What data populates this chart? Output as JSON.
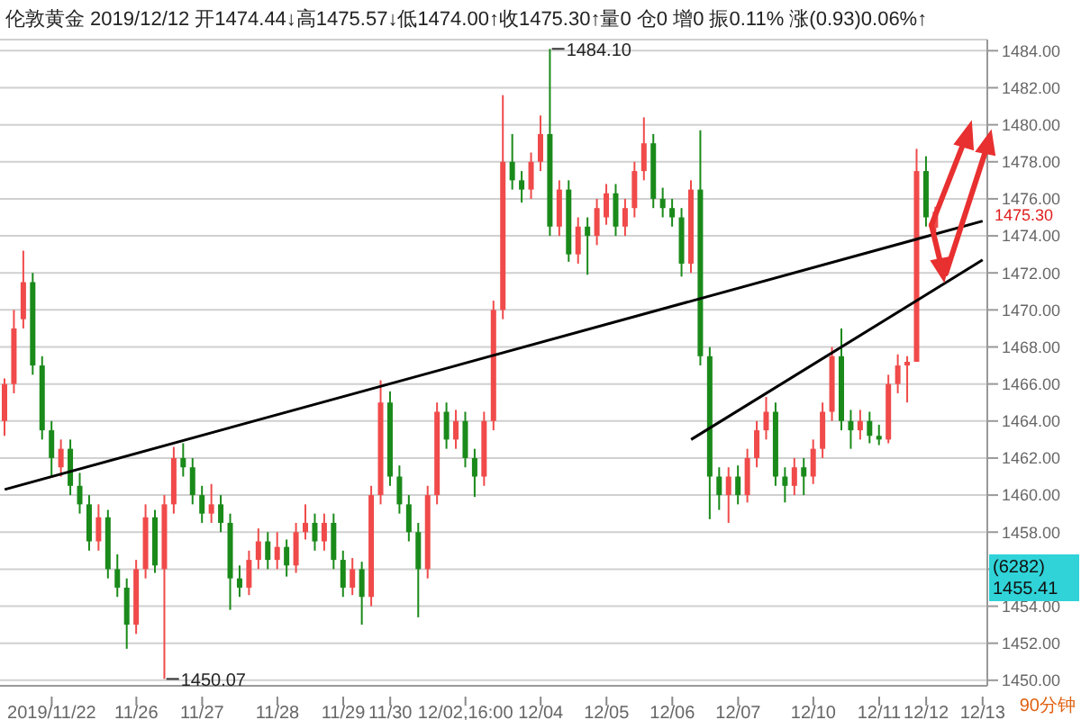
{
  "chart_data": {
    "type": "candlestick",
    "title": "伦敦黄金 2019/12/12 开1474.44↓高1475.57↓低1474.00↑收1475.30↑量0 仓0 增0 振0.11% 涨(0.93)0.06%↑",
    "categories": [
      null,
      null,
      null,
      null,
      null,
      "2019/11/22",
      null,
      null,
      null,
      null,
      null,
      null,
      null,
      null,
      "11/26",
      null,
      null,
      null,
      null,
      null,
      null,
      "11/27",
      null,
      null,
      null,
      null,
      null,
      null,
      null,
      "11/28",
      null,
      null,
      null,
      null,
      null,
      null,
      "11/29",
      null,
      null,
      null,
      null,
      "11/30",
      null,
      null,
      null,
      null,
      null,
      null,
      null,
      "12/02,16:00",
      null,
      null,
      null,
      null,
      null,
      null,
      null,
      "12/04",
      null,
      null,
      null,
      null,
      null,
      null,
      "12/05",
      null,
      null,
      null,
      null,
      null,
      null,
      "12/06",
      null,
      null,
      null,
      null,
      null,
      null,
      "12/07",
      null,
      null,
      null,
      null,
      null,
      null,
      null,
      "12/10",
      null,
      null,
      null,
      null,
      null,
      null,
      "12/11",
      null,
      null,
      null,
      null,
      "12/12",
      null,
      null,
      null,
      null,
      null,
      "12/13"
    ],
    "ohlc": [
      [
        1464,
        1466.3,
        1463.2,
        1466
      ],
      [
        1466,
        1470,
        1465.5,
        1469
      ],
      [
        1469.5,
        1473.2,
        1469,
        1471.5
      ],
      [
        1471.5,
        1472,
        1466.5,
        1467
      ],
      [
        1467,
        1467.5,
        1463,
        1463.5
      ],
      [
        1463.5,
        1464,
        1461,
        1462
      ],
      [
        1461.5,
        1463,
        1461,
        1462.5
      ],
      [
        1462.5,
        1463,
        1460,
        1460.5
      ],
      [
        1460.5,
        1461.2,
        1459,
        1459.5
      ],
      [
        1459.5,
        1460,
        1457,
        1457.5
      ],
      [
        1457.5,
        1459.5,
        1457,
        1458.8
      ],
      [
        1458.8,
        1459.2,
        1455.5,
        1456
      ],
      [
        1456,
        1456.8,
        1454.5,
        1455
      ],
      [
        1455,
        1455.5,
        1451.7,
        1453
      ],
      [
        1453,
        1456.5,
        1452.5,
        1456
      ],
      [
        1456,
        1459.5,
        1455.5,
        1458.8
      ],
      [
        1458.8,
        1459.2,
        1455.8,
        1456.2
      ],
      [
        1456,
        1460,
        1450.07,
        1459.5
      ],
      [
        1459.5,
        1462.6,
        1459,
        1462
      ],
      [
        1462,
        1462.8,
        1461,
        1461.5
      ],
      [
        1461.5,
        1462,
        1459.5,
        1460
      ],
      [
        1460,
        1460.5,
        1458.5,
        1459
      ],
      [
        1459,
        1460.6,
        1458.5,
        1459.5
      ],
      [
        1459.5,
        1460,
        1458,
        1458.5
      ],
      [
        1458.5,
        1459,
        1453.8,
        1455.5
      ],
      [
        1455.5,
        1456.2,
        1454.5,
        1455
      ],
      [
        1455,
        1457,
        1454.6,
        1456.5
      ],
      [
        1456.5,
        1458.2,
        1456,
        1457.5
      ],
      [
        1457.5,
        1458,
        1456,
        1456.5
      ],
      [
        1456.5,
        1458,
        1456,
        1457.2
      ],
      [
        1457.2,
        1457.6,
        1455.6,
        1456.2
      ],
      [
        1456.2,
        1458.5,
        1455.8,
        1458
      ],
      [
        1458,
        1459.5,
        1457.6,
        1458.5
      ],
      [
        1458.5,
        1459,
        1457,
        1457.5
      ],
      [
        1457.5,
        1459,
        1457,
        1458.5
      ],
      [
        1458.5,
        1459,
        1456,
        1456.5
      ],
      [
        1456.5,
        1457,
        1454.5,
        1455
      ],
      [
        1455,
        1456.6,
        1454.6,
        1456
      ],
      [
        1456,
        1456.4,
        1453,
        1454.5
      ],
      [
        1454.5,
        1460.5,
        1454,
        1460
      ],
      [
        1460,
        1466.2,
        1459.5,
        1465
      ],
      [
        1465,
        1465.6,
        1460.5,
        1461
      ],
      [
        1461,
        1461.6,
        1459,
        1459.5
      ],
      [
        1459.5,
        1460,
        1457.5,
        1458
      ],
      [
        1458,
        1458.5,
        1453.4,
        1456
      ],
      [
        1456,
        1460.5,
        1455.5,
        1460
      ],
      [
        1460,
        1465,
        1459.5,
        1464.5
      ],
      [
        1464.5,
        1465,
        1462.5,
        1463
      ],
      [
        1463,
        1464.6,
        1462.5,
        1464
      ],
      [
        1464,
        1464.5,
        1461.5,
        1462
      ],
      [
        1462,
        1462.5,
        1459.9,
        1461
      ],
      [
        1461,
        1464.5,
        1460.5,
        1464
      ],
      [
        1464,
        1470.5,
        1463.5,
        1470
      ],
      [
        1470,
        1481.6,
        1469.5,
        1478
      ],
      [
        1478,
        1479.5,
        1476.5,
        1477
      ],
      [
        1477,
        1477.5,
        1475.8,
        1476.5
      ],
      [
        1476.5,
        1478.5,
        1476,
        1478
      ],
      [
        1478,
        1480.5,
        1477.5,
        1479.5
      ],
      [
        1479.5,
        1484.1,
        1474,
        1474.5
      ],
      [
        1474.5,
        1477,
        1474,
        1476.5
      ],
      [
        1476.5,
        1477,
        1472.6,
        1473
      ],
      [
        1473,
        1475,
        1472.5,
        1474.5
      ],
      [
        1474.5,
        1475,
        1471.9,
        1474
      ],
      [
        1474,
        1476,
        1473.5,
        1475.5
      ],
      [
        1475,
        1476.8,
        1474.6,
        1476.3
      ],
      [
        1476.3,
        1476.8,
        1474,
        1474.5
      ],
      [
        1474.5,
        1476,
        1474,
        1475.5
      ],
      [
        1475.5,
        1478,
        1475,
        1477.5
      ],
      [
        1477.5,
        1480.4,
        1477,
        1479
      ],
      [
        1479,
        1479.5,
        1475.5,
        1476
      ],
      [
        1476,
        1476.6,
        1475,
        1475.5
      ],
      [
        1475.5,
        1476,
        1474.5,
        1475
      ],
      [
        1475,
        1475.5,
        1471.8,
        1472.5
      ],
      [
        1472.5,
        1477,
        1472,
        1476.5
      ],
      [
        1476.5,
        1479.7,
        1467,
        1467.5
      ],
      [
        1467.5,
        1468,
        1458.7,
        1461
      ],
      [
        1461,
        1461.5,
        1459.2,
        1460
      ],
      [
        1460,
        1461.5,
        1458.5,
        1461
      ],
      [
        1461,
        1461.6,
        1459.5,
        1460
      ],
      [
        1460,
        1462.5,
        1459.6,
        1462
      ],
      [
        1462,
        1464,
        1461.5,
        1463.5
      ],
      [
        1463.5,
        1465.3,
        1463,
        1464.5
      ],
      [
        1464.5,
        1465,
        1460.5,
        1461
      ],
      [
        1461,
        1461.5,
        1459.6,
        1460.5
      ],
      [
        1460.5,
        1462,
        1460,
        1461.5
      ],
      [
        1461.5,
        1462,
        1460,
        1461
      ],
      [
        1461,
        1463,
        1460.6,
        1462.5
      ],
      [
        1462.5,
        1465,
        1462,
        1464.5
      ],
      [
        1464.5,
        1468,
        1464,
        1467.5
      ],
      [
        1467.5,
        1469,
        1463.5,
        1464
      ],
      [
        1464,
        1464.6,
        1462.5,
        1463.5
      ],
      [
        1463.5,
        1464.6,
        1463,
        1464
      ],
      [
        1464,
        1464.5,
        1462.8,
        1463.2
      ],
      [
        1463.2,
        1463.8,
        1462.7,
        1463
      ],
      [
        1463,
        1466.5,
        1462.8,
        1466
      ],
      [
        1466,
        1467.6,
        1465.5,
        1467
      ],
      [
        1467,
        1467.5,
        1465,
        1467.2
      ],
      [
        1467.2,
        1478.7,
        1467.2,
        1477.5
      ],
      [
        1477.5,
        1478.3,
        1474.5,
        1475
      ],
      [
        1474.44,
        1475.57,
        1474,
        1475.3
      ],
      null,
      null,
      null,
      null,
      null
    ],
    "series": [
      {
        "type": "line",
        "color": "#000000",
        "values": [
          1460.3,
          null,
          null,
          null,
          null,
          null,
          null,
          null,
          null,
          null,
          null,
          null,
          null,
          null,
          null,
          null,
          null,
          null,
          null,
          null,
          null,
          null,
          null,
          null,
          null,
          null,
          null,
          null,
          null,
          null,
          null,
          null,
          null,
          null,
          null,
          null,
          null,
          null,
          null,
          null,
          null,
          null,
          null,
          null,
          null,
          null,
          null,
          null,
          null,
          null,
          null,
          null,
          null,
          null,
          null,
          null,
          null,
          null,
          null,
          null,
          null,
          null,
          null,
          null,
          null,
          null,
          null,
          null,
          null,
          null,
          null,
          null,
          null,
          null,
          null,
          null,
          null,
          null,
          null,
          null,
          null,
          null,
          null,
          null,
          null,
          null,
          null,
          null,
          null,
          null,
          null,
          null,
          null,
          null,
          null,
          null,
          null,
          null,
          null,
          null,
          null,
          null,
          null,
          null,
          1474.8
        ]
      },
      {
        "type": "line",
        "color": "#000000",
        "values": [
          null,
          null,
          null,
          null,
          null,
          null,
          null,
          null,
          null,
          null,
          null,
          null,
          null,
          null,
          null,
          null,
          null,
          null,
          null,
          null,
          null,
          null,
          null,
          null,
          null,
          null,
          null,
          null,
          null,
          null,
          null,
          null,
          null,
          null,
          null,
          null,
          null,
          null,
          null,
          null,
          null,
          null,
          null,
          null,
          null,
          null,
          null,
          null,
          null,
          null,
          null,
          null,
          null,
          null,
          null,
          null,
          null,
          null,
          null,
          null,
          null,
          null,
          null,
          null,
          null,
          null,
          null,
          null,
          null,
          null,
          null,
          null,
          null,
          1463.0,
          null,
          null,
          null,
          null,
          null,
          null,
          null,
          null,
          null,
          null,
          null,
          null,
          null,
          null,
          null,
          null,
          null,
          null,
          null,
          null,
          null,
          null,
          null,
          null,
          null,
          null,
          null,
          null,
          null,
          null,
          1472.7
        ]
      }
    ],
    "ylim": [
      1449.7,
      1484.6
    ],
    "yticks": [
      {
        "value": 1450,
        "label": "1450.00"
      },
      {
        "value": 1452,
        "label": "1452.00"
      },
      {
        "value": 1454,
        "label": "1454.00"
      },
      {
        "value": 1456,
        "label": null
      },
      {
        "value": 1458,
        "label": "1458.00"
      },
      {
        "value": 1460,
        "label": "1460.00"
      },
      {
        "value": 1462,
        "label": "1462.00"
      },
      {
        "value": 1464,
        "label": "1464.00"
      },
      {
        "value": 1466,
        "label": "1466.00"
      },
      {
        "value": 1468,
        "label": "1468.00"
      },
      {
        "value": 1470,
        "label": "1470.00"
      },
      {
        "value": 1472,
        "label": "1472.00"
      },
      {
        "value": 1474,
        "label": "1474.00"
      },
      {
        "value": 1476,
        "label": "1476.00"
      },
      {
        "value": 1478,
        "label": "1478.00"
      },
      {
        "value": 1480,
        "label": "1480.00"
      },
      {
        "value": 1482,
        "label": "1482.00"
      },
      {
        "value": 1484,
        "label": "1484.00"
      }
    ],
    "grid": "y",
    "annotations": [
      "1484.10",
      "1450.07",
      "1475.30",
      "(6282)",
      "1455.41",
      "90分钟"
    ]
  }
}
